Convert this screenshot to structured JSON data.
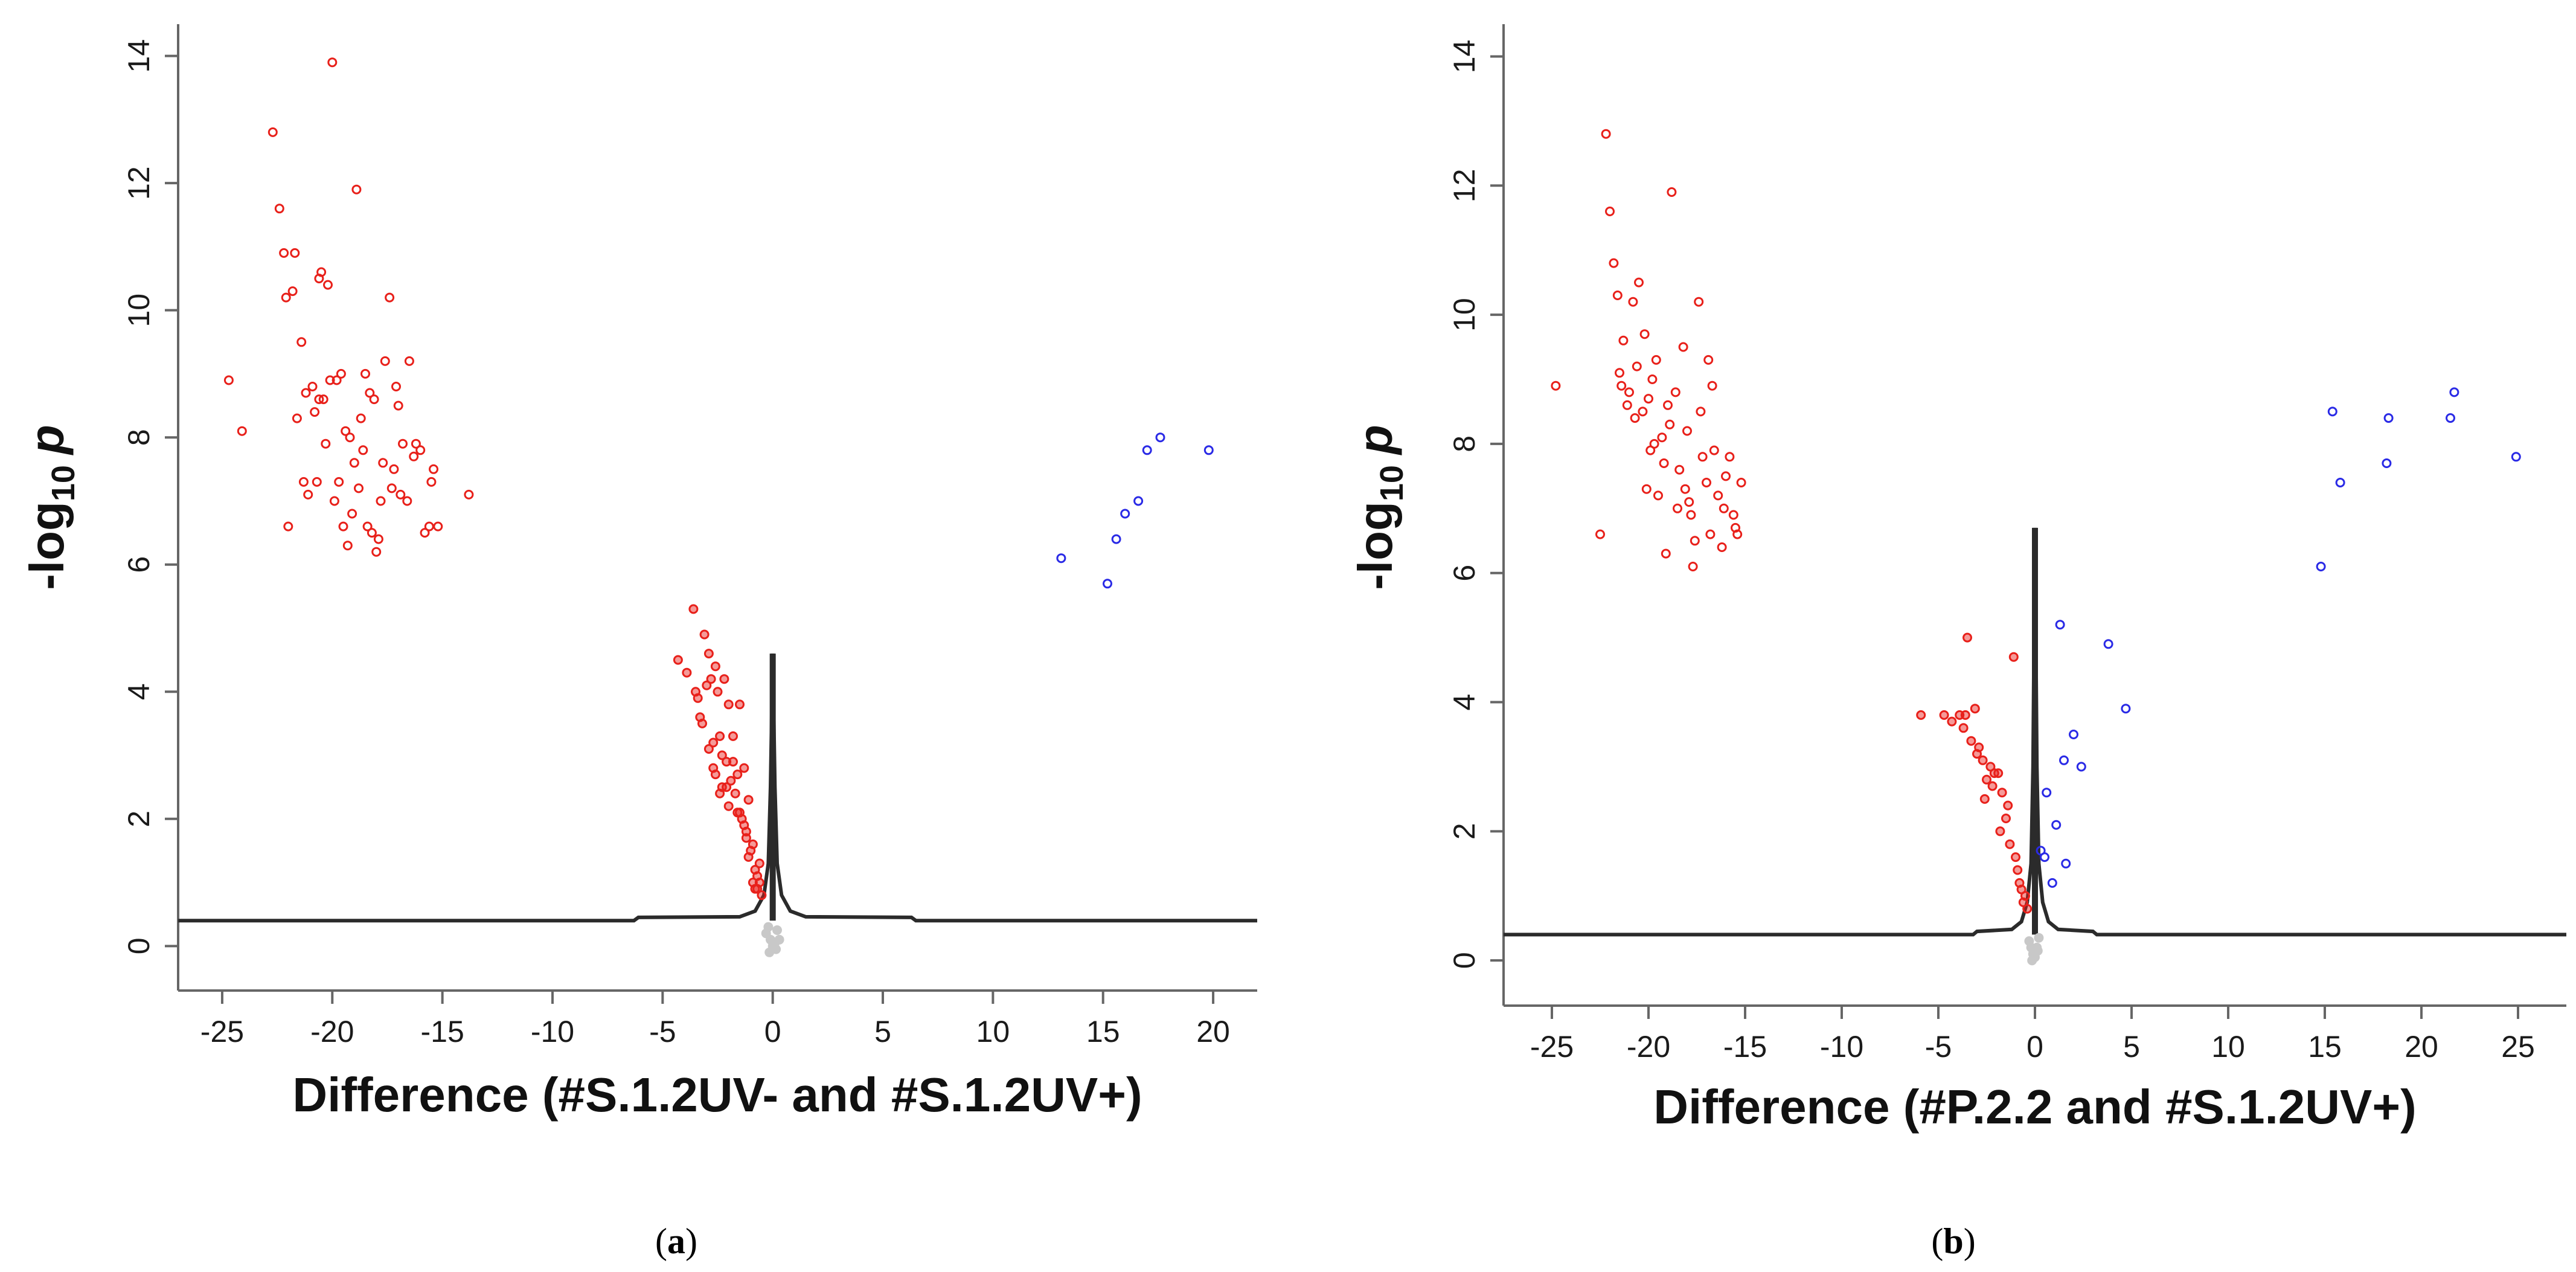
{
  "chart_data": [
    {
      "type": "scatter",
      "panel_label_open": "(",
      "panel_label_letter": "a",
      "panel_label_close": ")",
      "xlabel": "Difference (#S.1.2UV- and #S.1.2UV+)",
      "ylabel_main": "-log",
      "ylabel_sub": "10",
      "ylabel_p": "p",
      "xlim": [
        -27,
        22
      ],
      "ylim": [
        -0.7,
        14.5
      ],
      "x_ticks": [
        -25,
        -20,
        -15,
        -10,
        -5,
        0,
        5,
        10,
        15,
        20
      ],
      "y_ticks": [
        0,
        2,
        4,
        6,
        8,
        10,
        12,
        14
      ],
      "grid": false,
      "colors": {
        "down": "#e8201a",
        "up": "#2a2ae6",
        "ns": "#c8c8c8",
        "curve": "#2b2b2b"
      },
      "curve": {
        "baseline_y": 0.4,
        "peak_y": 4.6,
        "x": [
          -27,
          -6.3,
          -6.1,
          -1.5,
          -0.8,
          -0.4,
          -0.2,
          -0.1,
          0.0,
          0.1,
          0.2,
          0.4,
          0.8,
          1.5,
          6.3,
          6.5,
          22
        ],
        "y": [
          0.4,
          0.4,
          0.45,
          0.46,
          0.55,
          0.8,
          1.3,
          2.5,
          4.6,
          2.5,
          1.3,
          0.8,
          0.55,
          0.46,
          0.45,
          0.4,
          0.4
        ]
      },
      "series": [
        {
          "name": "down",
          "x": [
            -24.7,
            -24.1,
            -22.7,
            -22.4,
            -22.2,
            -22.1,
            -21.7,
            -21.6,
            -21.4,
            -21.2,
            -21.1,
            -20.9,
            -20.7,
            -20.6,
            -20.5,
            -20.4,
            -20.3,
            -20.2,
            -20.0,
            -19.8,
            -19.7,
            -19.5,
            -19.4,
            -19.3,
            -19.1,
            -18.9,
            -18.7,
            -18.5,
            -18.3,
            -18.2,
            -18.0,
            -17.8,
            -17.6,
            -17.4,
            -17.2,
            -17.0,
            -16.8,
            -16.5,
            -16.3,
            -16.0,
            -15.8,
            -15.6,
            -15.4,
            -15.2,
            -13.8,
            -22.0,
            -21.3,
            -20.1,
            -19.0,
            -18.4,
            -17.7,
            -17.1,
            -16.6,
            -20.8,
            -19.6,
            -18.8,
            -17.9,
            -16.9,
            -21.8,
            -19.9,
            -18.1,
            -17.3,
            -16.2,
            -15.5,
            -20.6,
            -19.2,
            -18.6
          ],
          "y": [
            8.9,
            8.1,
            12.8,
            11.6,
            10.9,
            10.2,
            10.9,
            8.3,
            9.5,
            8.7,
            7.1,
            8.8,
            7.3,
            10.5,
            10.6,
            8.6,
            7.9,
            10.4,
            13.9,
            8.9,
            7.3,
            6.6,
            8.1,
            6.3,
            6.8,
            11.9,
            8.3,
            9.0,
            8.7,
            6.5,
            6.2,
            7.0,
            9.2,
            10.2,
            7.5,
            8.5,
            7.9,
            9.2,
            7.7,
            7.8,
            6.5,
            6.6,
            7.5,
            6.6,
            7.1,
            6.6,
            7.3,
            8.9,
            7.6,
            6.6,
            7.6,
            8.8,
            7.0,
            8.4,
            9.0,
            7.2,
            6.4,
            7.1,
            10.3,
            7.0,
            8.6,
            7.2,
            7.9,
            7.3,
            8.6,
            8.0,
            7.8
          ]
        },
        {
          "name": "down-near",
          "x": [
            -4.3,
            -3.9,
            -3.6,
            -3.4,
            -3.2,
            -3.1,
            -3.0,
            -2.9,
            -2.8,
            -2.7,
            -2.6,
            -2.5,
            -2.4,
            -2.3,
            -2.2,
            -2.1,
            -2.0,
            -1.9,
            -1.8,
            -1.7,
            -1.6,
            -1.5,
            -1.4,
            -1.3,
            -1.2,
            -1.1,
            -1.0,
            -0.9,
            -0.8,
            -0.7,
            -0.6,
            -0.5,
            -3.3,
            -2.9,
            -2.6,
            -2.3,
            -2.0,
            -1.8,
            -1.6,
            -1.3,
            -1.1,
            -0.9,
            -0.7,
            -3.5,
            -2.7,
            -2.4,
            -2.1,
            -1.5,
            -1.2,
            -0.8,
            -0.6
          ],
          "y": [
            4.5,
            4.3,
            5.3,
            3.9,
            3.5,
            4.9,
            4.1,
            4.6,
            4.2,
            3.2,
            4.4,
            4.0,
            3.3,
            3.0,
            4.2,
            2.9,
            3.8,
            2.6,
            3.3,
            2.4,
            2.7,
            3.8,
            2.0,
            2.8,
            1.8,
            2.3,
            1.5,
            1.6,
            1.2,
            0.9,
            1.3,
            0.8,
            3.6,
            3.1,
            2.7,
            2.5,
            2.2,
            2.9,
            2.1,
            1.9,
            1.4,
            1.0,
            1.1,
            4.0,
            2.8,
            2.4,
            2.5,
            2.1,
            1.7,
            0.9,
            1.0
          ]
        },
        {
          "name": "up",
          "x": [
            13.1,
            15.2,
            15.6,
            16.0,
            16.6,
            17.0,
            17.6,
            19.8
          ],
          "y": [
            6.1,
            5.7,
            6.4,
            6.8,
            7.0,
            7.8,
            8.0,
            7.8
          ]
        },
        {
          "name": "ns",
          "x": [
            -0.3,
            -0.2,
            -0.1,
            0.1,
            0.2,
            0.3,
            0.0,
            -0.15,
            0.15
          ],
          "y": [
            0.2,
            0.3,
            0.1,
            0.05,
            0.25,
            0.1,
            0.0,
            -0.1,
            -0.05
          ]
        }
      ]
    },
    {
      "type": "scatter",
      "panel_label_open": "(",
      "panel_label_letter": "b",
      "panel_label_close": ")",
      "xlabel": "Difference (#P.2.2 and #S.1.2UV+)",
      "ylabel_main": "-log",
      "ylabel_sub": "10",
      "ylabel_p": "p",
      "xlim": [
        -27.5,
        27.5
      ],
      "ylim": [
        -0.7,
        14.5
      ],
      "x_ticks": [
        -25,
        -20,
        -15,
        -10,
        -5,
        0,
        5,
        10,
        15,
        20,
        25
      ],
      "y_ticks": [
        0,
        2,
        4,
        6,
        8,
        10,
        12,
        14
      ],
      "grid": false,
      "colors": {
        "down": "#e8201a",
        "up": "#2a2ae6",
        "ns": "#c8c8c8",
        "curve": "#2b2b2b"
      },
      "curve": {
        "baseline_y": 0.4,
        "peak_y": 6.7,
        "x": [
          -27.5,
          -3.2,
          -3.0,
          -1.2,
          -0.7,
          -0.4,
          -0.2,
          -0.1,
          0.0,
          0.1,
          0.2,
          0.4,
          0.7,
          1.2,
          3.0,
          3.2,
          27.5
        ],
        "y": [
          0.4,
          0.4,
          0.45,
          0.48,
          0.6,
          0.9,
          1.5,
          3.0,
          6.7,
          3.0,
          1.5,
          0.9,
          0.6,
          0.48,
          0.45,
          0.4,
          0.4
        ]
      },
      "series": [
        {
          "name": "down",
          "x": [
            -24.8,
            -22.5,
            -22.2,
            -22.0,
            -21.8,
            -21.6,
            -21.5,
            -21.3,
            -21.1,
            -21.0,
            -20.8,
            -20.6,
            -20.5,
            -20.3,
            -20.1,
            -20.0,
            -19.8,
            -19.6,
            -19.5,
            -19.3,
            -19.1,
            -19.0,
            -18.8,
            -18.6,
            -18.4,
            -18.2,
            -18.0,
            -17.8,
            -17.6,
            -17.4,
            -17.2,
            -17.0,
            -16.8,
            -16.6,
            -16.4,
            -16.2,
            -16.0,
            -15.8,
            -15.6,
            -15.4,
            -15.2,
            -20.2,
            -19.7,
            -18.5,
            -17.7,
            -16.9,
            -21.4,
            -20.7,
            -19.2,
            -18.1,
            -17.3,
            -16.1,
            -15.5,
            -19.9,
            -18.9,
            -17.9,
            -16.7
          ],
          "y": [
            8.9,
            6.6,
            12.8,
            11.6,
            10.8,
            10.3,
            9.1,
            9.6,
            8.6,
            8.8,
            10.2,
            9.2,
            10.5,
            8.5,
            7.3,
            8.7,
            9.0,
            9.3,
            7.2,
            8.1,
            6.3,
            8.6,
            11.9,
            8.8,
            7.6,
            9.5,
            8.2,
            6.9,
            6.5,
            10.2,
            7.8,
            7.4,
            6.6,
            7.9,
            7.2,
            6.4,
            7.5,
            7.8,
            6.9,
            6.6,
            7.4,
            9.7,
            8.0,
            7.0,
            6.1,
            9.3,
            8.9,
            8.4,
            7.7,
            7.3,
            8.5,
            7.0,
            6.7,
            7.9,
            8.3,
            7.1,
            8.9
          ]
        },
        {
          "name": "down-near",
          "x": [
            -5.9,
            -4.7,
            -4.3,
            -3.9,
            -3.7,
            -3.5,
            -3.3,
            -3.1,
            -2.9,
            -2.7,
            -2.5,
            -2.3,
            -2.1,
            -1.9,
            -1.7,
            -1.5,
            -1.3,
            -1.1,
            -0.9,
            -0.7,
            -0.5,
            -0.4,
            -3.6,
            -3.0,
            -2.6,
            -2.2,
            -1.8,
            -1.4,
            -1.0,
            -0.8,
            -0.6
          ],
          "y": [
            3.8,
            3.8,
            3.7,
            3.8,
            3.6,
            5.0,
            3.4,
            3.9,
            3.3,
            3.1,
            2.8,
            3.0,
            2.9,
            2.9,
            2.6,
            2.2,
            1.8,
            4.7,
            1.4,
            1.1,
            1.0,
            0.8,
            3.8,
            3.2,
            2.5,
            2.7,
            2.0,
            2.4,
            1.6,
            1.2,
            0.9
          ]
        },
        {
          "name": "up",
          "x": [
            1.3,
            1.5,
            2.0,
            2.4,
            3.8,
            4.7,
            0.6,
            1.1,
            1.6,
            0.3,
            0.5,
            0.9,
            14.8,
            15.4,
            15.8,
            18.2,
            18.3,
            21.5,
            21.7,
            24.9
          ],
          "y": [
            5.2,
            3.1,
            3.5,
            3.0,
            4.9,
            3.9,
            2.6,
            2.1,
            1.5,
            1.7,
            1.6,
            1.2,
            6.1,
            8.5,
            7.4,
            7.7,
            8.4,
            8.4,
            8.8,
            7.8
          ]
        },
        {
          "name": "ns",
          "x": [
            -0.3,
            -0.2,
            -0.1,
            0.1,
            0.2,
            0.0,
            -0.15,
            0.15
          ],
          "y": [
            0.3,
            0.2,
            0.1,
            0.2,
            0.35,
            0.05,
            0.0,
            0.15
          ]
        }
      ]
    }
  ]
}
